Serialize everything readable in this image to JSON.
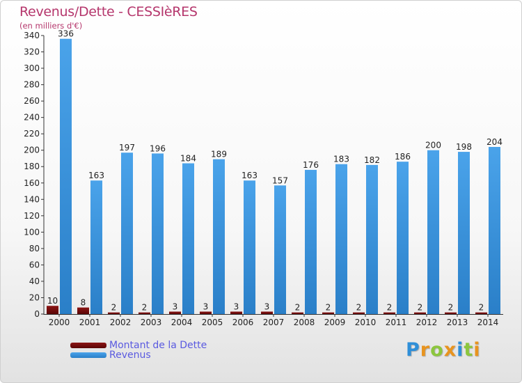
{
  "chart_data": {
    "type": "bar",
    "title": "Revenus/Dette - CESSIèRES",
    "subtitle": "(en milliers d'€)",
    "xlabel": "",
    "ylabel": "",
    "ylim": [
      0,
      340
    ],
    "yticks": [
      0,
      20,
      40,
      60,
      80,
      100,
      120,
      140,
      160,
      180,
      200,
      220,
      240,
      260,
      280,
      300,
      320,
      340
    ],
    "categories": [
      "2000",
      "2001",
      "2002",
      "2003",
      "2004",
      "2005",
      "2006",
      "2007",
      "2008",
      "2009",
      "2010",
      "2011",
      "2012",
      "2013",
      "2014"
    ],
    "grid": false,
    "legend_position": "bottom-left",
    "series": [
      {
        "name": "Montant de la Dette",
        "color": "#7a0c0c",
        "values": [
          10,
          8,
          2,
          2,
          3,
          3,
          3,
          3,
          2,
          2,
          2,
          2,
          2,
          2,
          2
        ]
      },
      {
        "name": "Revenus",
        "color": "#3d97e0",
        "values": [
          336,
          163,
          197,
          196,
          184,
          189,
          163,
          157,
          176,
          183,
          182,
          186,
          200,
          198,
          204
        ]
      }
    ]
  },
  "brand": {
    "letters": [
      "P",
      "r",
      "o",
      "x",
      "i",
      "t",
      "i"
    ],
    "colors": [
      "#2f8fd8",
      "#e8941f",
      "#8cc63e",
      "#e8941f",
      "#2f8fd8",
      "#8cc63e",
      "#e8941f"
    ]
  }
}
